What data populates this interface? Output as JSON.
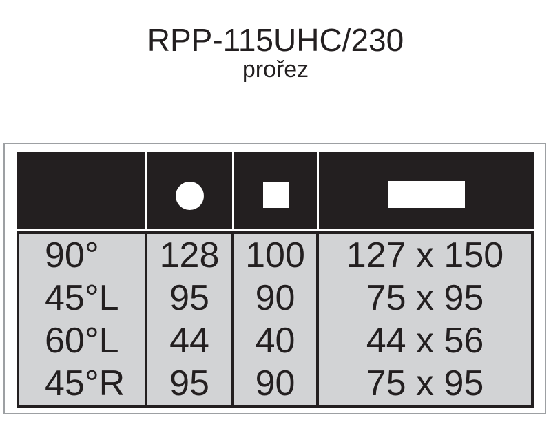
{
  "page": {
    "title": "RPP-115UHC/230",
    "subtitle": "prořez"
  },
  "chart_data": {
    "type": "table",
    "title": "RPP-115UHC/230",
    "subtitle": "prořez",
    "columns": [
      {
        "icon": "none",
        "label": ""
      },
      {
        "icon": "circle"
      },
      {
        "icon": "square"
      },
      {
        "icon": "rectangle"
      }
    ],
    "rows": [
      {
        "angle": "90°",
        "circle": "128",
        "square": "100",
        "rectangle": "127 x 150"
      },
      {
        "angle": "45°L",
        "circle": "95",
        "square": "90",
        "rectangle": "75 x 95"
      },
      {
        "angle": "60°L",
        "circle": "44",
        "square": "40",
        "rectangle": "44 x 56"
      },
      {
        "angle": "45°R",
        "circle": "95",
        "square": "90",
        "rectangle": "75 x 95"
      }
    ]
  },
  "colors": {
    "ink_black": "#231f20",
    "cell_gray": "#d2d3d5",
    "frame_border": "#9da0a3",
    "background": "#ffffff"
  }
}
